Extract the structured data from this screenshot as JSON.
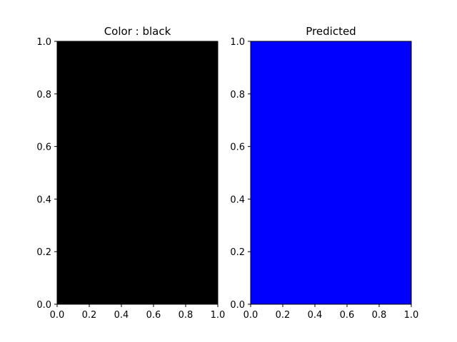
{
  "chart_data": [
    {
      "type": "heatmap",
      "title": "Color : black",
      "fill_color": "#000000",
      "xlim": [
        0.0,
        1.0
      ],
      "ylim": [
        0.0,
        1.0
      ],
      "xticks": [
        "0.0",
        "0.2",
        "0.4",
        "0.6",
        "0.8",
        "1.0"
      ],
      "yticks": [
        "0.0",
        "0.2",
        "0.4",
        "0.6",
        "0.8",
        "1.0"
      ],
      "xlabel": "",
      "ylabel": "",
      "grid": false
    },
    {
      "type": "heatmap",
      "title": "Predicted",
      "fill_color": "#0000ff",
      "xlim": [
        0.0,
        1.0
      ],
      "ylim": [
        0.0,
        1.0
      ],
      "xticks": [
        "0.0",
        "0.2",
        "0.4",
        "0.6",
        "0.8",
        "1.0"
      ],
      "yticks": [
        "0.0",
        "0.2",
        "0.4",
        "0.6",
        "0.8",
        "1.0"
      ],
      "xlabel": "",
      "ylabel": "",
      "grid": false
    }
  ]
}
